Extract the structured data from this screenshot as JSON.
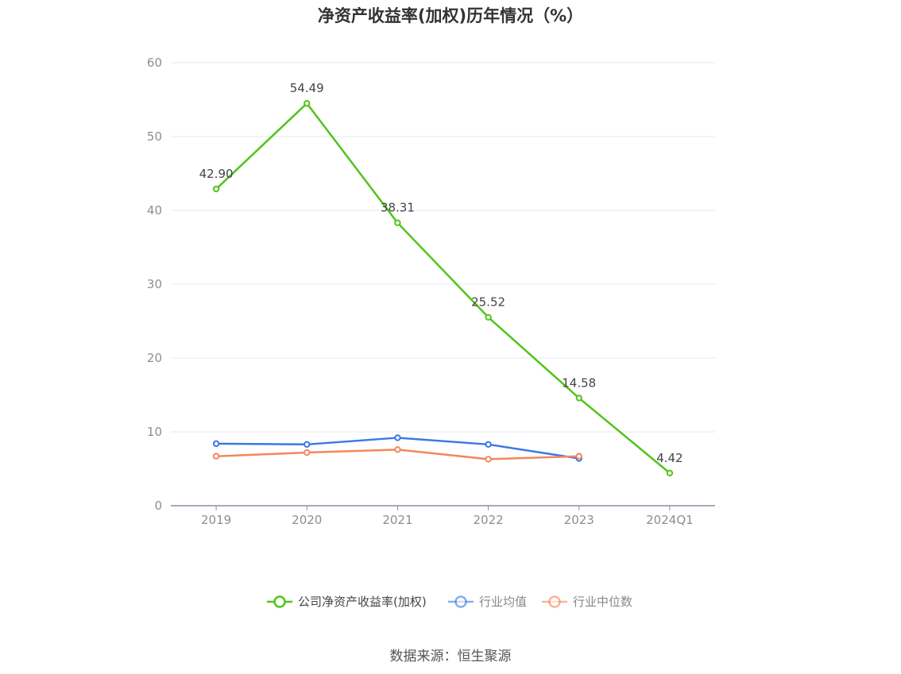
{
  "title": "净资产收益率(加权)历年情况（%）",
  "source": "数据来源：恒生聚源",
  "colors": {
    "company": "#52c41a",
    "industry_avg": "#3b78e7",
    "industry_median": "#f3875a",
    "grid": "#e3e8f0",
    "axis": "#8a8fa3",
    "tick_text": "#8e8e8e",
    "label_text": "#444444"
  },
  "chart_data": {
    "type": "line",
    "categories": [
      "2019",
      "2020",
      "2021",
      "2022",
      "2023",
      "2024Q1"
    ],
    "ylim": [
      0,
      60
    ],
    "yticks": [
      "0",
      "10",
      "20",
      "30",
      "40",
      "50",
      "60"
    ],
    "grid": true,
    "legend_position": "bottom-center",
    "series": [
      {
        "name": "公司净资产收益率(加权)",
        "values": [
          42.9,
          54.49,
          38.31,
          25.52,
          14.58,
          4.42
        ],
        "labels": [
          "42.90",
          "54.49",
          "38.31",
          "25.52",
          "14.58",
          "4.42"
        ],
        "color_key": "company"
      },
      {
        "name": "行业均值",
        "values": [
          8.4,
          8.3,
          9.2,
          8.3,
          6.4,
          null
        ],
        "color_key": "industry_avg"
      },
      {
        "name": "行业中位数",
        "values": [
          6.7,
          7.2,
          7.6,
          6.3,
          6.7,
          null
        ],
        "color_key": "industry_median"
      }
    ]
  }
}
